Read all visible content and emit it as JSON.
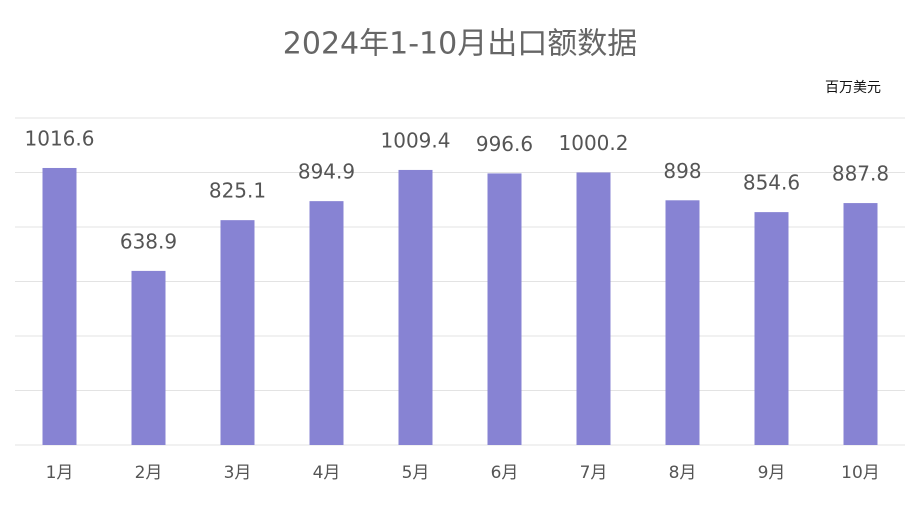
{
  "chart_data": {
    "type": "bar",
    "title": "2024年1-10月出口额数据",
    "unit": "百万美元",
    "categories": [
      "1月",
      "2月",
      "3月",
      "4月",
      "5月",
      "6月",
      "7月",
      "8月",
      "9月",
      "10月"
    ],
    "values": [
      1016.6,
      638.9,
      825.1,
      894.9,
      1009.4,
      996.6,
      1000.2,
      898,
      854.6,
      887.8
    ],
    "color": "#8783d3",
    "ylim": [
      0,
      1200
    ],
    "yticks": [
      0,
      200,
      400,
      600,
      800,
      1000,
      1200
    ],
    "grid": true
  }
}
